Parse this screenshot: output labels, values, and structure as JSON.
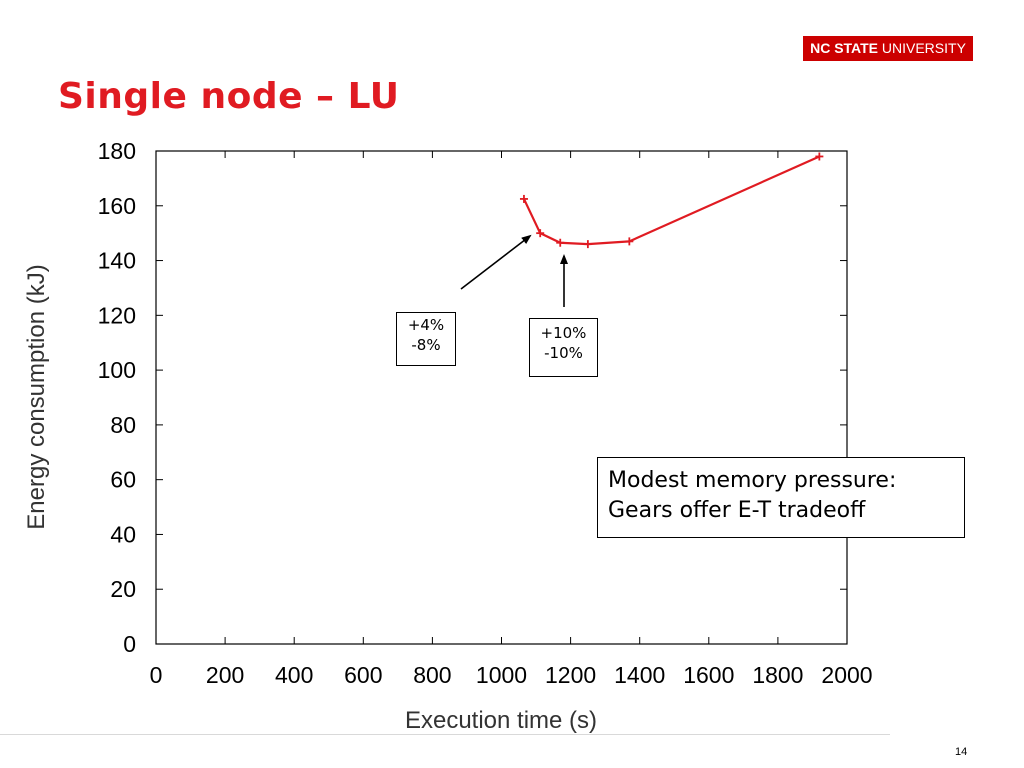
{
  "logo": {
    "bold_text": "NC STATE",
    "text": "UNIVERSITY",
    "color": "#cc0000"
  },
  "slide": {
    "title": "Single node – LU",
    "page_number": "14"
  },
  "callouts": {
    "a": {
      "line1": "+4%",
      "line2": "-8%"
    },
    "b": {
      "line1": "+10%",
      "line2": "-10%"
    }
  },
  "note": {
    "line1": "Modest memory pressure:",
    "line2": "Gears offer E-T tradeoff"
  },
  "chart_data": {
    "type": "line",
    "title": "",
    "xlabel": "Execution time (s)",
    "ylabel": "Energy consumption (kJ)",
    "xlim": [
      0,
      2000
    ],
    "ylim": [
      0,
      180
    ],
    "xticks": [
      0,
      200,
      400,
      600,
      800,
      1000,
      1200,
      1400,
      1600,
      1800,
      2000
    ],
    "yticks": [
      0,
      20,
      40,
      60,
      80,
      100,
      120,
      140,
      160,
      180
    ],
    "grid": false,
    "marker": "plus",
    "series": [
      {
        "color": "#e01b22",
        "points": [
          {
            "x": 1065,
            "y": 162.5
          },
          {
            "x": 1112,
            "y": 150
          },
          {
            "x": 1170,
            "y": 146.5
          },
          {
            "x": 1250,
            "y": 146
          },
          {
            "x": 1370,
            "y": 147
          },
          {
            "x": 1920,
            "y": 178
          }
        ]
      }
    ]
  }
}
